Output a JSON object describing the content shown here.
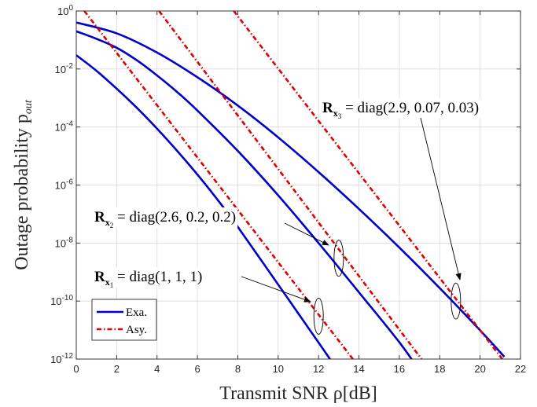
{
  "chart_data": {
    "type": "line",
    "xlabel": "Transmit SNR ρ[dB]",
    "ylabel": "Outage probability p",
    "ylabel_sub": "out",
    "x_range": [
      0,
      22
    ],
    "y_range": [
      1e-12,
      1
    ],
    "y_scale": "log",
    "grid": true,
    "legend_position": "bottom-left",
    "x_ticks": [
      "0",
      "2",
      "4",
      "6",
      "8",
      "10",
      "12",
      "14",
      "16",
      "18",
      "20",
      "22"
    ],
    "y_ticks": [
      {
        "base": "10",
        "exp": "0"
      },
      {
        "base": "10",
        "exp": "-2"
      },
      {
        "base": "10",
        "exp": "-4"
      },
      {
        "base": "10",
        "exp": "-6"
      },
      {
        "base": "10",
        "exp": "-8"
      },
      {
        "base": "10",
        "exp": "-10"
      },
      {
        "base": "10",
        "exp": "-12"
      }
    ],
    "legend": [
      {
        "label": "Exa.",
        "color": "#0000cc",
        "style": "solid"
      },
      {
        "label": "Asy.",
        "color": "#e00000",
        "style": "dashdot"
      }
    ],
    "annotations": [
      {
        "bold": "R",
        "sub": "x",
        "subsub": "1",
        "text": " = diag(1, 1, 1)",
        "target": [
          12,
          3e-11
        ]
      },
      {
        "bold": "R",
        "sub": "x",
        "subsub": "2",
        "text": " = diag(2.6, 0.2, 0.2)",
        "target": [
          13,
          3e-09
        ]
      },
      {
        "bold": "R",
        "sub": "x",
        "subsub": "3",
        "text": " = diag(2.9, 0.07, 0.03)",
        "target": [
          18.8,
          1e-10
        ]
      }
    ],
    "series": [
      {
        "kind": "exact",
        "color": "#0000cc",
        "dash": "",
        "x": [
          0,
          1,
          2,
          3,
          4,
          5,
          6,
          7,
          8,
          10,
          12,
          13.8
        ],
        "y": [
          0.03,
          0.0087,
          0.0021,
          0.00046,
          8.8e-05,
          1.5e-05,
          2.3e-06,
          3.1e-07,
          3.6e-08,
          3.7e-10,
          3.7e-12,
          5.8e-14
        ]
      },
      {
        "kind": "exact",
        "color": "#0000cc",
        "dash": "",
        "x": [
          0,
          1,
          2,
          3,
          4,
          5,
          6,
          8,
          10,
          12,
          14,
          16,
          17.2
        ],
        "y": [
          0.2,
          0.11,
          0.054,
          0.02,
          0.006,
          0.0016,
          0.00037,
          1.5e-05,
          4.4e-07,
          1e-08,
          2e-10,
          3.8e-12,
          2.5e-13
        ]
      },
      {
        "kind": "exact",
        "color": "#0000cc",
        "dash": "",
        "x": [
          0,
          2,
          4,
          6,
          8,
          10,
          12,
          14,
          16,
          18,
          20,
          21.2
        ],
        "y": [
          0.4,
          0.17,
          0.037,
          0.0052,
          0.00055,
          4.4e-05,
          2.8e-06,
          1.5e-07,
          7e-09,
          2.8e-10,
          9.8e-12,
          1.2e-12
        ]
      },
      {
        "kind": "asymptotic",
        "color": "#e00000",
        "dash": "6,3,1.5,3",
        "x": [
          0.4,
          13.7
        ],
        "y": [
          1,
          1e-12
        ]
      },
      {
        "kind": "asymptotic",
        "color": "#e00000",
        "dash": "6,3,1.5,3",
        "x": [
          4.1,
          17.1
        ],
        "y": [
          1,
          1e-12
        ]
      },
      {
        "kind": "asymptotic",
        "color": "#e00000",
        "dash": "6,3,1.5,3",
        "x": [
          7.8,
          21.1
        ],
        "y": [
          1,
          1e-12
        ]
      }
    ]
  }
}
